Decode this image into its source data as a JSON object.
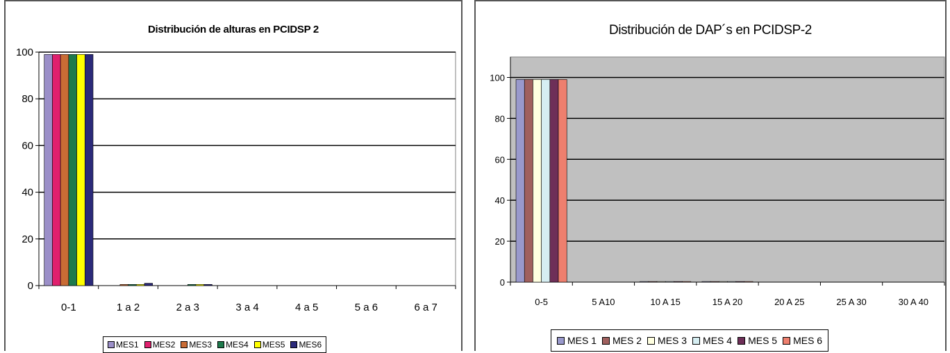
{
  "chart_data": [
    {
      "type": "bar",
      "title": "Distribución de alturas en PCIDSP 2",
      "xlabel": "",
      "ylabel": "",
      "categories": [
        "0-1",
        "1 a 2",
        "2 a 3",
        "3 a 4",
        "4 a 5",
        "5 a 6",
        "6 a 7"
      ],
      "ylim": [
        0,
        100
      ],
      "yticks": [
        "0",
        "20",
        "40",
        "60",
        "80",
        "100"
      ],
      "grid": true,
      "plot_background": "#ffffff",
      "legend_position": "bottom",
      "series": [
        {
          "name": "MES1",
          "color": "#9b8fc8",
          "values": [
            99,
            0,
            0,
            0,
            0,
            0,
            0
          ]
        },
        {
          "name": "MES2",
          "color": "#e0206e",
          "values": [
            99,
            0,
            0,
            0,
            0,
            0,
            0
          ]
        },
        {
          "name": "MES3",
          "color": "#c96c35",
          "values": [
            99,
            0.5,
            0,
            0,
            0,
            0,
            0
          ]
        },
        {
          "name": "MES4",
          "color": "#1e7a4c",
          "values": [
            99,
            0.5,
            0.5,
            0,
            0,
            0,
            0
          ]
        },
        {
          "name": "MES5",
          "color": "#ffff00",
          "values": [
            99,
            0.5,
            0.5,
            0,
            0,
            0,
            0
          ]
        },
        {
          "name": "MES6",
          "color": "#2b2a7a",
          "values": [
            99,
            1,
            0.5,
            0,
            0,
            0,
            0
          ]
        }
      ]
    },
    {
      "type": "bar",
      "title": "Distribución de DAP´s en PCIDSP-2",
      "xlabel": "",
      "ylabel": "",
      "categories": [
        "0-5",
        "5 A10",
        "10 A 15",
        "15 A 20",
        "20 A 25",
        "25 A 30",
        "30 A 40"
      ],
      "ylim": [
        0,
        110
      ],
      "yticks": [
        "0",
        "20",
        "40",
        "60",
        "80",
        "100"
      ],
      "grid": true,
      "plot_background": "#c0c0c0",
      "legend_position": "bottom",
      "series": [
        {
          "name": "MES 1",
          "color": "#9999cc",
          "values": [
            99,
            0,
            0.3,
            0.3,
            0,
            0,
            0
          ]
        },
        {
          "name": "MES 2",
          "color": "#a0605e",
          "values": [
            99,
            0,
            0.3,
            0.3,
            0,
            0,
            0
          ]
        },
        {
          "name": "MES 3",
          "color": "#ffffe0",
          "values": [
            99,
            0,
            0.3,
            0.3,
            0,
            0,
            0
          ]
        },
        {
          "name": "MES 4",
          "color": "#d6eef2",
          "values": [
            99,
            0,
            0.3,
            0.3,
            0,
            0,
            0
          ]
        },
        {
          "name": "MES 5",
          "color": "#6e2f58",
          "values": [
            99,
            0,
            0.3,
            0.3,
            0,
            0,
            0
          ]
        },
        {
          "name": "MES 6",
          "color": "#ee7f6e",
          "values": [
            99,
            0,
            0.3,
            0.3,
            0,
            0,
            0
          ]
        }
      ]
    }
  ]
}
